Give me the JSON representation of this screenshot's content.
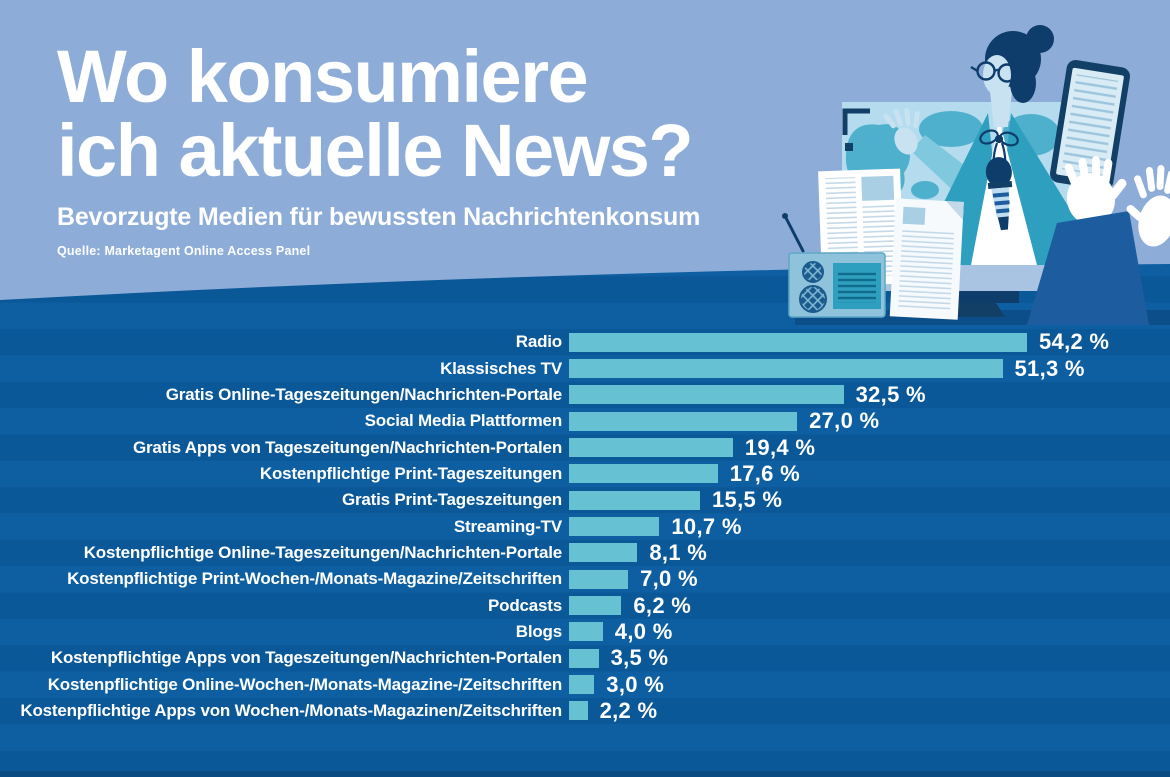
{
  "header": {
    "title_line1": "Wo konsumiere",
    "title_line2": "ich aktuelle News?",
    "subtitle": "Bevorzugte Medien für bewussten Nachrichtenkonsum",
    "source": "Quelle: Marketagent Online Access Panel"
  },
  "colors": {
    "header_bg": "#8DACD8",
    "body_bg": "#0C5B9D",
    "body_stripe_dark": "#0B5898",
    "body_stripe_light": "#0E5FA2",
    "footer_strip": "#0A4B84",
    "bar_fill": "#66C2D3",
    "text": "#FFFFFF",
    "illustration_teal": "#2E9FBE",
    "illustration_navy": "#0E3C6B"
  },
  "illustration": {
    "alt": "News anchor with bun and glasses holding a microphone on a TV screen showing a world map, beside newspapers, a radio, and hands holding a tablet"
  },
  "chart_data": {
    "type": "bar",
    "orientation": "horizontal",
    "title": "Wo konsumiere ich aktuelle News?",
    "subtitle": "Bevorzugte Medien für bewussten Nachrichtenkonsum",
    "source": "Quelle: Marketagent Online Access Panel",
    "unit": "%",
    "xlim": [
      0,
      60
    ],
    "grid": false,
    "legend": false,
    "bar_color": "#66C2D3",
    "categories": [
      "Radio",
      "Klassisches TV",
      "Gratis Online-Tageszeitungen/Nachrichten-Portale",
      "Social Media Plattformen",
      "Gratis Apps von Tageszeitungen/Nachrichten-Portalen",
      "Kostenpflichtige Print-Tageszeitungen",
      "Gratis Print-Tageszeitungen",
      "Streaming-TV",
      "Kostenpflichtige Online-Tageszeitungen/Nachrichten-Portale",
      "Kostenpflichtige Print-Wochen-/Monats-Magazine/Zeitschriften",
      "Podcasts",
      "Blogs",
      "Kostenpflichtige Apps von Tageszeitungen/Nachrichten-Portalen",
      "Kostenpflichtige Online-Wochen-/Monats-Magazine-/Zeitschriften",
      "Kostenpflichtige Apps von Wochen-/Monats-Magazinen/Zeitschriften"
    ],
    "values": [
      54.2,
      51.3,
      32.5,
      27.0,
      19.4,
      17.6,
      15.5,
      10.7,
      8.1,
      7.0,
      6.2,
      4.0,
      3.5,
      3.0,
      2.2
    ],
    "value_labels": [
      "54,2 %",
      "51,3 %",
      "32,5 %",
      "27,0 %",
      "19,4 %",
      "17,6 %",
      "15,5 %",
      "10,7 %",
      "8,1 %",
      "7,0 %",
      "6,2 %",
      "4,0 %",
      "3,5 %",
      "3,0 %",
      "2,2 %"
    ]
  }
}
